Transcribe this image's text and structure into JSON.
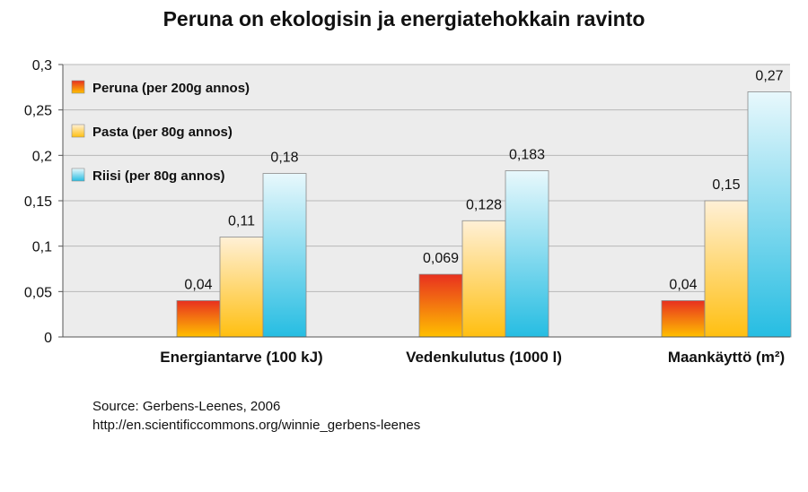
{
  "chart_data": {
    "type": "bar",
    "title": "Peruna on ekologisin ja energiatehokkain ravinto",
    "categories": [
      "Energiantarve (100 kJ)",
      "Vedenkulutus (1000 l)",
      "Maankäyttö (m²)"
    ],
    "series": [
      {
        "name": "Peruna (per 200g annos)",
        "values": [
          0.04,
          0.069,
          0.04
        ],
        "labels": [
          "0,04",
          "0,069",
          "0,04"
        ]
      },
      {
        "name": "Pasta (per 80g annos)",
        "values": [
          0.11,
          0.128,
          0.15
        ],
        "labels": [
          "0,11",
          "0,128",
          "0,15"
        ]
      },
      {
        "name": "Riisi (per 80g annos)",
        "values": [
          0.18,
          0.183,
          0.27
        ],
        "labels": [
          "0,18",
          "0,183",
          "0,27"
        ]
      }
    ],
    "ylim": [
      0,
      0.3
    ],
    "yticks": [
      0,
      0.05,
      0.1,
      0.15,
      0.2,
      0.25,
      0.3
    ],
    "ytick_labels": [
      "0",
      "0,05",
      "0,1",
      "0,15",
      "0,2",
      "0,25",
      "0,3"
    ],
    "grid": true,
    "legend_position": "top-left"
  },
  "colors": {
    "peruna_top": "#e8301f",
    "peruna_bottom": "#ffc000",
    "pasta_top": "#fff0d6",
    "pasta_bottom": "#ffbf10",
    "riisi_top": "#e8f8fc",
    "riisi_bottom": "#26bde2",
    "plot_bg": "#ececec",
    "grid": "#b8b8b8"
  },
  "source": {
    "line1": "Source: Gerbens-Leenes, 2006",
    "line2": "http://en.scientificcommons.org/winnie_gerbens-leenes"
  }
}
